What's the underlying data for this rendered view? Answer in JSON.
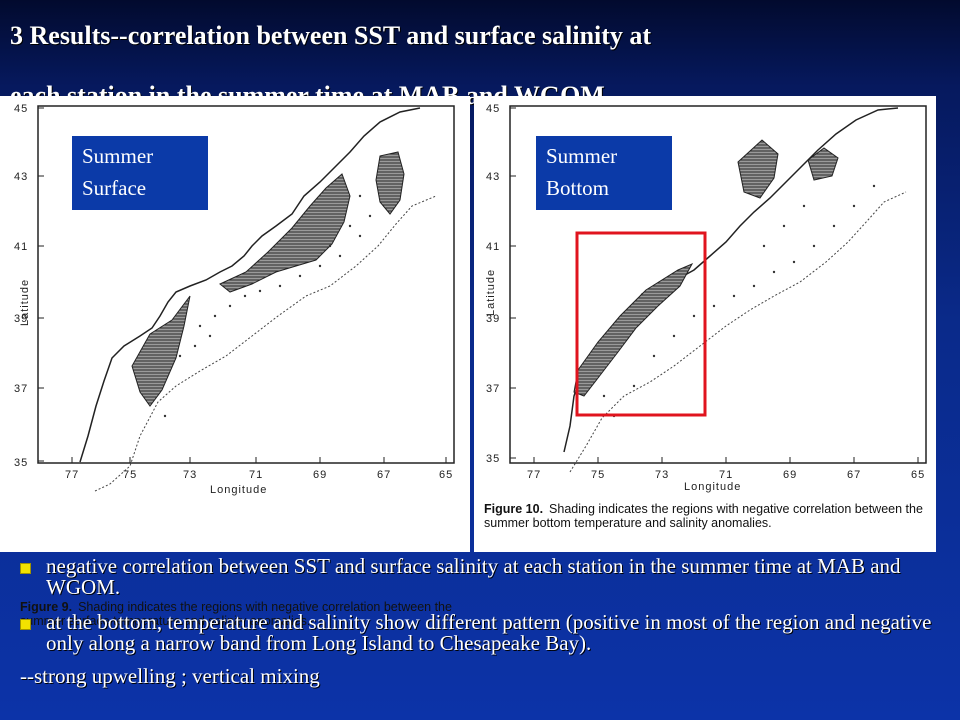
{
  "slide": {
    "title_line1": "3 Results--correlation between SST and surface salinity at",
    "title_line2": "each station in the summer time at MAB and WGOM."
  },
  "figures": [
    {
      "label_line1": "Summer",
      "label_line2": "Surface",
      "caption_number": "Figure 9.",
      "caption_text": "Shading indicates the regions with negative correlation between the summer surface temperature and salinity anomalies.",
      "y_ticks": [
        "45",
        "43",
        "41",
        "39",
        "37",
        "35"
      ],
      "x_ticks": [
        "77",
        "75",
        "73",
        "71",
        "69",
        "67",
        "65"
      ],
      "y_label": "Latitude",
      "x_label": "Longitude"
    },
    {
      "label_line1": "Summer",
      "label_line2": "Bottom",
      "caption_number": "Figure 10.",
      "caption_text": "Shading indicates the regions with negative correlation between the summer bottom temperature and salinity anomalies.",
      "y_ticks": [
        "45",
        "43",
        "41",
        "39",
        "37",
        "35"
      ],
      "x_ticks": [
        "77",
        "75",
        "73",
        "71",
        "69",
        "67",
        "65"
      ],
      "y_label": "Latitude",
      "x_label": "Longitude",
      "highlight_color": "#e0141e"
    }
  ],
  "bullets": [
    "negative correlation between SST and surface salinity at each station in the summer time at MAB and WGOM.",
    "at the bottom, temperature and salinity show different pattern (positive in most of the region and negative only along a narrow band from Long Island to Chesapeake Bay)."
  ],
  "note": "--strong upwelling ; vertical mixing",
  "colors": {
    "bullet_marker": "#f2e200",
    "label_box": "#0b3aa8"
  }
}
